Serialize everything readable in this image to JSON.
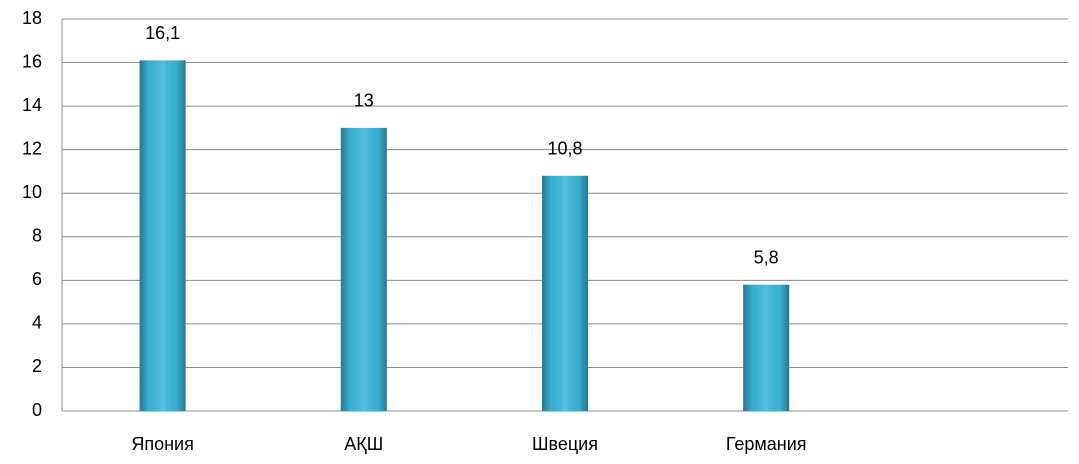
{
  "chart_data": {
    "type": "bar",
    "categories": [
      "Япония",
      "АҚШ",
      "Швеция",
      "Германия",
      null
    ],
    "values": [
      16.1,
      13,
      10.8,
      5.8,
      null
    ],
    "value_labels": [
      "16,1",
      "13",
      "10,8",
      "5,8",
      null
    ],
    "color": "#3cb8dc",
    "ylim": [
      0,
      18
    ],
    "yticks": [
      0,
      2,
      4,
      6,
      8,
      10,
      12,
      14,
      16,
      18
    ],
    "grid": true
  }
}
